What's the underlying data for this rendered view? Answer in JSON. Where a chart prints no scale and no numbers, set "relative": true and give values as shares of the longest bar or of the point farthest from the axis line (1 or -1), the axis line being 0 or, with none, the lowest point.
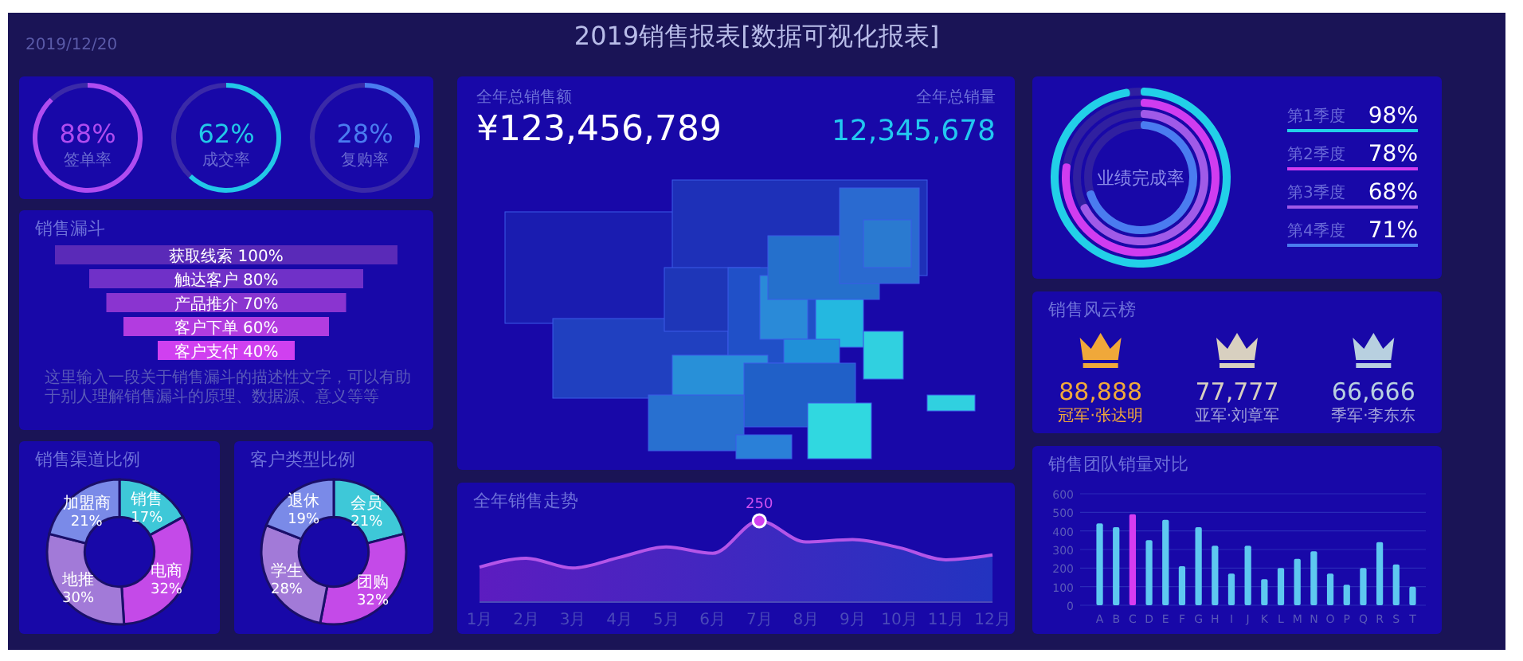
{
  "chart_data": [
    {
      "type": "other",
      "title": "2019销售报表[数据可视化报表]",
      "annotations": [
        "2019/12/20"
      ]
    },
    {
      "type": "donut",
      "categories": [
        "签单率",
        null
      ],
      "values": [
        88,
        12
      ],
      "value_labels": [
        "88%",
        null
      ],
      "colors": [
        "#b04cf0",
        "#3a2aa8"
      ]
    },
    {
      "type": "donut",
      "categories": [
        "成交率",
        null
      ],
      "values": [
        62,
        38
      ],
      "value_labels": [
        "62%",
        null
      ],
      "colors": [
        "#22c8e8",
        "#3a2aa8"
      ]
    },
    {
      "type": "donut",
      "categories": [
        "复购率",
        null
      ],
      "values": [
        28,
        72
      ],
      "value_labels": [
        "28%",
        null
      ],
      "colors": [
        "#4a7cf0",
        "#3a2aa8"
      ]
    },
    {
      "type": "other",
      "title": "销售漏斗",
      "categories": [
        "获取线索",
        "触达客户",
        "产品推介",
        "客户下单",
        "客户支付"
      ],
      "values": [
        100,
        80,
        70,
        60,
        40
      ],
      "value_labels": [
        "100%",
        "80%",
        "70%",
        "60%",
        "40%"
      ],
      "annotations": [
        "这里输入一段关于销售漏斗的描述性文字，可以有助于别人理解销售漏斗的原理、数据源、意义等等"
      ]
    },
    {
      "type": "other",
      "annotations": [
        "全年总销售额",
        "¥123,456,789",
        "全年总销量",
        "12,345,678"
      ]
    },
    {
      "type": "other",
      "title": "业绩完成率",
      "categories": [
        "第1季度",
        "第2季度",
        "第3季度",
        "第4季度"
      ],
      "values": [
        98,
        78,
        68,
        71
      ],
      "value_labels": [
        "98%",
        "78%",
        "68%",
        "71%"
      ]
    },
    {
      "type": "other",
      "title": "销售风云榜",
      "categories": [
        "冠军·张达明",
        "亚军·刘章军",
        "季军·李东东"
      ],
      "value_labels": [
        "88,888",
        "77,777",
        "66,666"
      ]
    },
    {
      "type": "donut",
      "title": "销售渠道比例",
      "categories": [
        "销售",
        "电商",
        "地推",
        "加盟商"
      ],
      "values": [
        17,
        32,
        30,
        21
      ],
      "value_labels": [
        "17%",
        "32%",
        "30%",
        "21%"
      ],
      "colors": [
        "#3ec8d8",
        "#c44ae8",
        "#a27ad8",
        "#7a8ae8"
      ]
    },
    {
      "type": "donut",
      "title": "客户类型比例",
      "categories": [
        "会员",
        "团购",
        "学生",
        "退休"
      ],
      "values": [
        21,
        32,
        28,
        19
      ],
      "value_labels": [
        "21%",
        "32%",
        "28%",
        "19%"
      ],
      "colors": [
        "#3ec8d8",
        "#c44ae8",
        "#a27ad8",
        "#7a8ae8"
      ]
    },
    {
      "type": "area",
      "title": "全年销售走势",
      "relative": true,
      "categories": [
        "1月",
        "2月",
        "3月",
        "4月",
        "5月",
        "6月",
        "7月",
        "8月",
        "9月",
        "10月",
        "11月",
        "12月"
      ],
      "series": [
        {
          "color": "#b455e8",
          "values": [
            0.43,
            0.54,
            0.42,
            0.55,
            0.68,
            0.6,
            1,
            0.74,
            0.77,
            0.67,
            0.52,
            0.58
          ]
        }
      ],
      "annotations": [
        {
          "text": "250",
          "x": "7月",
          "y": 1
        }
      ]
    },
    {
      "type": "bar",
      "title": "销售团队销量对比",
      "categories": [
        "A",
        "B",
        "C",
        "D",
        "E",
        "F",
        "G",
        "H",
        "I",
        "J",
        "K",
        "L",
        "M",
        "N",
        "O",
        "P",
        "Q",
        "R",
        "S",
        "T"
      ],
      "values": [
        440,
        420,
        490,
        350,
        460,
        210,
        420,
        320,
        170,
        320,
        140,
        200,
        250,
        290,
        170,
        110,
        200,
        340,
        220,
        100
      ],
      "colors": [
        "#5ec8f0",
        "#5ec8f0",
        "#d63cf0",
        "#5ec8f0",
        "#5ec8f0",
        "#5ec8f0",
        "#5ec8f0",
        "#5ec8f0",
        "#5ec8f0",
        "#5ec8f0",
        "#5ec8f0",
        "#5ec8f0",
        "#5ec8f0",
        "#5ec8f0",
        "#5ec8f0",
        "#5ec8f0",
        "#5ec8f0",
        "#5ec8f0",
        "#5ec8f0",
        "#5ec8f0"
      ],
      "ylim": [
        0,
        600
      ],
      "yticks": [
        0,
        100,
        200,
        300,
        400,
        500,
        600
      ],
      "grid": "y"
    }
  ]
}
